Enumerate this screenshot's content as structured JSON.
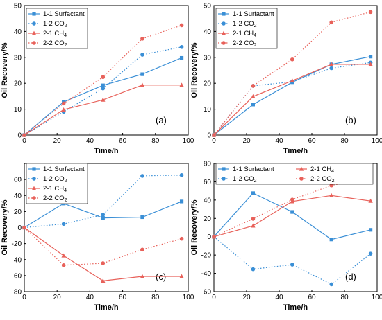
{
  "chart_data": [
    {
      "type": "line",
      "panel_label": "(a)",
      "xlabel": "Time/h",
      "ylabel": "Oil Recovery/%",
      "xlim": [
        0,
        100
      ],
      "ylim": [
        0,
        50
      ],
      "xticks": [
        0,
        20,
        40,
        60,
        80,
        100
      ],
      "yticks": [
        0,
        10,
        20,
        30,
        40,
        50
      ],
      "grid": false,
      "legend": {
        "placement": "top-left",
        "columns": 1
      },
      "x": [
        0,
        24,
        48,
        72,
        96
      ],
      "series": [
        {
          "name": "1-1 Surfactant",
          "label_main": "1-1 Surfactant",
          "label_sub": "",
          "color": "#3a8fd6",
          "style": "solid",
          "marker": "square",
          "values": [
            0,
            12.8,
            19.2,
            23.5,
            29.8
          ]
        },
        {
          "name": "1-2 CO2",
          "label_main": "1-2 CO",
          "label_sub": "2",
          "color": "#3a8fd6",
          "style": "dotted",
          "marker": "circle",
          "values": [
            0,
            9.0,
            18.0,
            31.0,
            34.0
          ]
        },
        {
          "name": "2-1 CH4",
          "label_main": "2-1 CH",
          "label_sub": "4",
          "color": "#e8615a",
          "style": "solid",
          "marker": "triangle",
          "values": [
            0,
            9.8,
            13.6,
            19.3,
            19.3
          ]
        },
        {
          "name": "2-2 CO2",
          "label_main": "2-2 CO",
          "label_sub": "2",
          "color": "#e8615a",
          "style": "dotted",
          "marker": "circle",
          "values": [
            0,
            12.2,
            22.4,
            37.2,
            42.4
          ]
        }
      ]
    },
    {
      "type": "line",
      "panel_label": "(b)",
      "xlabel": "Time/h",
      "ylabel": "Oil Recovery/%",
      "xlim": [
        0,
        100
      ],
      "ylim": [
        0,
        50
      ],
      "xticks": [
        0,
        20,
        40,
        60,
        80,
        100
      ],
      "yticks": [
        0,
        10,
        20,
        30,
        40,
        50
      ],
      "grid": false,
      "legend": {
        "placement": "top-left",
        "columns": 1
      },
      "x": [
        0,
        24,
        48,
        72,
        96
      ],
      "series": [
        {
          "name": "1-1 Surfactant",
          "label_main": "1-1 Surfactant",
          "label_sub": "",
          "color": "#3a8fd6",
          "style": "solid",
          "marker": "square",
          "values": [
            0,
            11.8,
            20.4,
            27.3,
            30.3
          ]
        },
        {
          "name": "1-2 CO2",
          "label_main": "1-2 CO",
          "label_sub": "2",
          "color": "#3a8fd6",
          "style": "dotted",
          "marker": "circle",
          "values": [
            0,
            19.0,
            20.6,
            25.8,
            28.0
          ]
        },
        {
          "name": "2-1 CH4",
          "label_main": "2-1 CH",
          "label_sub": "4",
          "color": "#e8615a",
          "style": "solid",
          "marker": "triangle",
          "values": [
            0,
            14.9,
            21.0,
            27.3,
            27.3
          ]
        },
        {
          "name": "2-2 CO2",
          "label_main": "2-2 CO",
          "label_sub": "2",
          "color": "#e8615a",
          "style": "dotted",
          "marker": "circle",
          "values": [
            0,
            19.0,
            29.2,
            43.5,
            47.5
          ]
        }
      ]
    },
    {
      "type": "line",
      "panel_label": "(c)",
      "xlabel": "Time/h",
      "ylabel": "Oil Recovery/%",
      "xlim": [
        0,
        100
      ],
      "ylim": [
        -80,
        80
      ],
      "xticks": [
        0,
        20,
        40,
        60,
        80,
        100
      ],
      "yticks": [
        -80,
        -60,
        -40,
        -20,
        0,
        20,
        40,
        60
      ],
      "grid": false,
      "legend": {
        "placement": "top-left",
        "columns": 1
      },
      "x": [
        0,
        24,
        48,
        72,
        96
      ],
      "series": [
        {
          "name": "1-1 Surfactant",
          "label_main": "1-1 Surfactant",
          "label_sub": "",
          "color": "#3a8fd6",
          "style": "solid",
          "marker": "square",
          "values": [
            0,
            30,
            12,
            13,
            32.5
          ]
        },
        {
          "name": "1-2 CO2",
          "label_main": "1-2 CO",
          "label_sub": "2",
          "color": "#3a8fd6",
          "style": "dotted",
          "marker": "circle",
          "values": [
            0,
            4.5,
            16,
            64.5,
            65.5
          ]
        },
        {
          "name": "2-1 CH4",
          "label_main": "2-1 CH",
          "label_sub": "4",
          "color": "#e8615a",
          "style": "solid",
          "marker": "triangle",
          "values": [
            0,
            -35,
            -66.5,
            -61,
            -61
          ]
        },
        {
          "name": "2-2 CO2",
          "label_main": "2-2 CO",
          "label_sub": "2",
          "color": "#e8615a",
          "style": "dotted",
          "marker": "circle",
          "values": [
            0,
            -47,
            -44.5,
            -27.5,
            -14
          ]
        }
      ]
    },
    {
      "type": "line",
      "panel_label": "(d)",
      "xlabel": "Time/h",
      "ylabel": "Oil Recovery/%",
      "xlim": [
        0,
        100
      ],
      "ylim": [
        -60,
        80
      ],
      "xticks": [
        0,
        20,
        40,
        60,
        80,
        100
      ],
      "yticks": [
        -60,
        -40,
        -20,
        0,
        20,
        40,
        60,
        80
      ],
      "grid": false,
      "legend": {
        "placement": "top",
        "columns": 2
      },
      "x": [
        0,
        24,
        48,
        72,
        96
      ],
      "series": [
        {
          "name": "1-1 Surfactant",
          "label_main": "1-1 Surfactant",
          "label_sub": "",
          "color": "#3a8fd6",
          "style": "solid",
          "marker": "square",
          "values": [
            0,
            47.5,
            27,
            -3,
            7.5
          ]
        },
        {
          "name": "1-2 CO2",
          "label_main": "1-2 CO",
          "label_sub": "2",
          "color": "#3a8fd6",
          "style": "dotted",
          "marker": "circle",
          "values": [
            0,
            -35.5,
            -30.5,
            -52,
            -18.5
          ]
        },
        {
          "name": "2-1 CH4",
          "label_main": "2-1 CH",
          "label_sub": "4",
          "color": "#e8615a",
          "style": "solid",
          "marker": "triangle",
          "values": [
            0,
            12,
            38.5,
            45,
            39
          ]
        },
        {
          "name": "2-2 CO2",
          "label_main": "2-2 CO",
          "label_sub": "2",
          "color": "#e8615a",
          "style": "dotted",
          "marker": "circle",
          "values": [
            0,
            19.5,
            40.5,
            56,
            64
          ]
        }
      ]
    }
  ]
}
